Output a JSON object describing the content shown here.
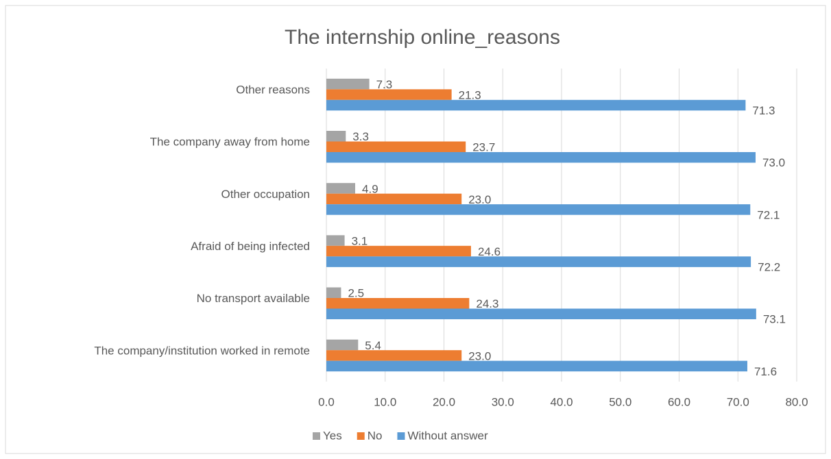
{
  "chart_data": {
    "type": "hbar",
    "title": "The internship online_reasons",
    "categories": [
      "Other reasons",
      "The company away from home",
      "Other occupation",
      "Afraid of being infected",
      "No transport available",
      "The company/institution worked in remote"
    ],
    "series": [
      {
        "name": "Yes",
        "color": "#a5a5a5",
        "values": [
          7.3,
          3.3,
          4.9,
          3.1,
          2.5,
          5.4
        ],
        "value_labels": [
          "7.3",
          "3.3",
          "4.9",
          "3.1",
          "2.5",
          "5.4"
        ]
      },
      {
        "name": "No",
        "color": "#ed7d31",
        "values": [
          21.3,
          23.7,
          23.0,
          24.6,
          24.3,
          23.0
        ],
        "value_labels": [
          "21.3",
          "23.7",
          "23.0",
          "24.6",
          "24.3",
          "23.0"
        ]
      },
      {
        "name": "Without answer",
        "color": "#5b9bd5",
        "values": [
          71.3,
          73.0,
          72.1,
          72.2,
          73.1,
          71.6
        ],
        "value_labels": [
          "71.3",
          "73.0",
          "72.1",
          "72.2",
          "73.1",
          "71.6"
        ]
      }
    ],
    "xlim": [
      0,
      80
    ],
    "xticks": [
      {
        "value": 0,
        "label": "0.0"
      },
      {
        "value": 10,
        "label": "10.0"
      },
      {
        "value": 20,
        "label": "20.0"
      },
      {
        "value": 30,
        "label": "30.0"
      },
      {
        "value": 40,
        "label": "40.0"
      },
      {
        "value": 50,
        "label": "50.0"
      },
      {
        "value": 60,
        "label": "60.0"
      },
      {
        "value": 70,
        "label": "70.0"
      },
      {
        "value": 80,
        "label": "80.0"
      }
    ],
    "grid": true,
    "legend": "bottom"
  }
}
